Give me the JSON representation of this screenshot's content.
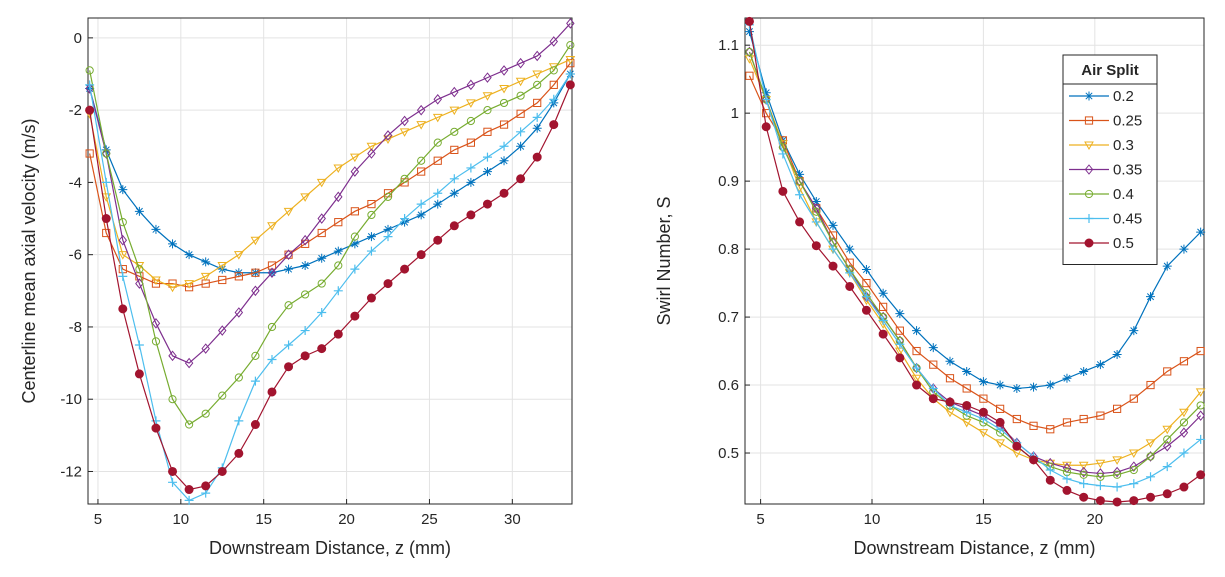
{
  "chart_data": [
    {
      "type": "line",
      "xlabel": "Downstream Distance, z (mm)",
      "ylabel": "Centerline mean axial velocity (m/s)",
      "x": [
        4.5,
        5.5,
        6.5,
        7.5,
        8.5,
        9.5,
        10.5,
        11.5,
        12.5,
        13.5,
        14.5,
        15.5,
        16.5,
        17.5,
        18.5,
        19.5,
        20.5,
        21.5,
        22.5,
        23.5,
        24.5,
        25.5,
        26.5,
        27.5,
        28.5,
        29.5,
        30.5,
        31.5,
        32.5,
        33.5
      ],
      "xlim": [
        4.4,
        33.6
      ],
      "xticks": [
        5,
        10,
        15,
        20,
        25,
        30
      ],
      "ylim": [
        -12.9,
        0.55
      ],
      "yticks": [
        -12,
        -10,
        -8,
        -6,
        -4,
        -2,
        0
      ],
      "grid": true,
      "series": [
        {
          "color": "#0072BD",
          "marker": "asterisk",
          "values": [
            -1.4,
            -3.1,
            -4.2,
            -4.8,
            -5.3,
            -5.7,
            -6.0,
            -6.2,
            -6.4,
            -6.5,
            -6.5,
            -6.5,
            -6.4,
            -6.3,
            -6.1,
            -5.9,
            -5.7,
            -5.5,
            -5.3,
            -5.1,
            -4.9,
            -4.6,
            -4.3,
            -4.0,
            -3.7,
            -3.4,
            -3.0,
            -2.5,
            -1.8,
            -1.0
          ]
        },
        {
          "color": "#D95319",
          "marker": "square",
          "values": [
            -3.2,
            -5.4,
            -6.4,
            -6.6,
            -6.8,
            -6.8,
            -6.9,
            -6.8,
            -6.7,
            -6.6,
            -6.5,
            -6.3,
            -6.0,
            -5.7,
            -5.4,
            -5.1,
            -4.8,
            -4.6,
            -4.3,
            -4.0,
            -3.7,
            -3.4,
            -3.1,
            -2.9,
            -2.6,
            -2.4,
            -2.1,
            -1.8,
            -1.3,
            -0.7
          ]
        },
        {
          "color": "#EDB120",
          "marker": "triangle-down",
          "values": [
            -2.1,
            -4.4,
            -6.0,
            -6.3,
            -6.7,
            -6.9,
            -6.8,
            -6.6,
            -6.3,
            -6.0,
            -5.6,
            -5.2,
            -4.8,
            -4.4,
            -4.0,
            -3.6,
            -3.3,
            -3.0,
            -2.8,
            -2.6,
            -2.4,
            -2.2,
            -2.0,
            -1.8,
            -1.6,
            -1.4,
            -1.2,
            -1.0,
            -0.8,
            -0.6
          ]
        },
        {
          "color": "#7E2F8E",
          "marker": "diamond",
          "values": [
            -1.4,
            -3.2,
            -5.6,
            -6.8,
            -7.9,
            -8.8,
            -9.0,
            -8.6,
            -8.1,
            -7.6,
            -7.0,
            -6.5,
            -6.0,
            -5.6,
            -5.0,
            -4.4,
            -3.7,
            -3.2,
            -2.7,
            -2.3,
            -2.0,
            -1.7,
            -1.5,
            -1.3,
            -1.1,
            -0.9,
            -0.7,
            -0.5,
            -0.1,
            0.4
          ]
        },
        {
          "color": "#77AC30",
          "marker": "circle",
          "values": [
            -0.9,
            -3.2,
            -5.1,
            -6.4,
            -8.4,
            -10.0,
            -10.7,
            -10.4,
            -9.9,
            -9.4,
            -8.8,
            -8.0,
            -7.4,
            -7.1,
            -6.8,
            -6.3,
            -5.5,
            -4.9,
            -4.4,
            -3.9,
            -3.4,
            -2.9,
            -2.6,
            -2.3,
            -2.0,
            -1.8,
            -1.6,
            -1.3,
            -0.9,
            -0.2
          ]
        },
        {
          "color": "#4DBEEE",
          "marker": "plus",
          "values": [
            -1.3,
            -4.0,
            -6.6,
            -8.5,
            -10.6,
            -12.3,
            -12.8,
            -12.6,
            -11.9,
            -10.6,
            -9.5,
            -8.9,
            -8.5,
            -8.1,
            -7.6,
            -7.0,
            -6.4,
            -5.9,
            -5.5,
            -5.0,
            -4.6,
            -4.3,
            -3.9,
            -3.6,
            -3.3,
            -3.0,
            -2.6,
            -2.2,
            -1.7,
            -1.0
          ]
        },
        {
          "color": "#A2142F",
          "marker": "filled-circle",
          "values": [
            -2.0,
            -5.0,
            -7.5,
            -9.3,
            -10.8,
            -12.0,
            -12.5,
            -12.4,
            -12.0,
            -11.5,
            -10.7,
            -9.8,
            -9.1,
            -8.8,
            -8.6,
            -8.2,
            -7.7,
            -7.2,
            -6.8,
            -6.4,
            -6.0,
            -5.6,
            -5.2,
            -4.9,
            -4.6,
            -4.3,
            -3.9,
            -3.3,
            -2.4,
            -1.3
          ]
        }
      ]
    },
    {
      "type": "line",
      "xlabel": "Downstream Distance, z (mm)",
      "ylabel": "Swirl Number, S",
      "x": [
        4.5,
        5.25,
        6,
        6.75,
        7.5,
        8.25,
        9,
        9.75,
        10.5,
        11.25,
        12,
        12.75,
        13.5,
        14.25,
        15,
        15.75,
        16.5,
        17.25,
        18,
        18.75,
        19.5,
        20.25,
        21,
        21.75,
        22.5,
        23.25,
        24,
        24.75
      ],
      "xlim": [
        4.3,
        24.9
      ],
      "xticks": [
        5,
        10,
        15,
        20
      ],
      "ylim": [
        0.425,
        1.14
      ],
      "yticks": [
        0.5,
        0.6,
        0.7,
        0.8,
        0.9,
        1,
        1.1
      ],
      "grid": true,
      "legend": {
        "title": "Air Split",
        "loc": "northeast"
      },
      "series": [
        {
          "name": "0.2",
          "color": "#0072BD",
          "marker": "asterisk",
          "values": [
            1.12,
            1.03,
            0.96,
            0.91,
            0.87,
            0.835,
            0.8,
            0.77,
            0.735,
            0.705,
            0.68,
            0.655,
            0.635,
            0.62,
            0.605,
            0.6,
            0.595,
            0.597,
            0.6,
            0.61,
            0.62,
            0.63,
            0.645,
            0.68,
            0.73,
            0.775,
            0.8,
            0.825
          ]
        },
        {
          "name": "0.25",
          "color": "#D95319",
          "marker": "square",
          "values": [
            1.055,
            1.0,
            0.96,
            0.9,
            0.86,
            0.82,
            0.78,
            0.75,
            0.715,
            0.68,
            0.65,
            0.63,
            0.61,
            0.595,
            0.58,
            0.565,
            0.55,
            0.54,
            0.535,
            0.545,
            0.55,
            0.555,
            0.565,
            0.58,
            0.6,
            0.62,
            0.635,
            0.65
          ]
        },
        {
          "name": "0.3",
          "color": "#EDB120",
          "marker": "triangle-down",
          "values": [
            1.08,
            1.02,
            0.955,
            0.89,
            0.84,
            0.8,
            0.765,
            0.725,
            0.69,
            0.65,
            0.61,
            0.58,
            0.56,
            0.545,
            0.53,
            0.515,
            0.5,
            0.49,
            0.485,
            0.482,
            0.482,
            0.485,
            0.49,
            0.5,
            0.515,
            0.535,
            0.56,
            0.59
          ]
        },
        {
          "name": "0.35",
          "color": "#7E2F8E",
          "marker": "diamond",
          "values": [
            1.09,
            1.02,
            0.95,
            0.9,
            0.86,
            0.81,
            0.77,
            0.73,
            0.7,
            0.665,
            0.625,
            0.595,
            0.575,
            0.565,
            0.555,
            0.54,
            0.515,
            0.495,
            0.485,
            0.478,
            0.472,
            0.47,
            0.472,
            0.48,
            0.495,
            0.51,
            0.53,
            0.555
          ]
        },
        {
          "name": "0.4",
          "color": "#77AC30",
          "marker": "circle",
          "values": [
            1.09,
            1.02,
            0.95,
            0.9,
            0.855,
            0.81,
            0.77,
            0.735,
            0.7,
            0.665,
            0.625,
            0.59,
            0.57,
            0.555,
            0.545,
            0.53,
            0.51,
            0.49,
            0.48,
            0.472,
            0.468,
            0.465,
            0.468,
            0.475,
            0.495,
            0.52,
            0.545,
            0.57
          ]
        },
        {
          "name": "0.45",
          "color": "#4DBEEE",
          "marker": "plus",
          "values": [
            1.13,
            1.02,
            0.94,
            0.88,
            0.84,
            0.8,
            0.765,
            0.73,
            0.695,
            0.66,
            0.625,
            0.595,
            0.57,
            0.56,
            0.55,
            0.535,
            0.515,
            0.495,
            0.475,
            0.462,
            0.455,
            0.452,
            0.45,
            0.455,
            0.465,
            0.48,
            0.5,
            0.52
          ]
        },
        {
          "name": "0.5",
          "color": "#A2142F",
          "marker": "filled-circle",
          "values": [
            1.135,
            0.98,
            0.885,
            0.84,
            0.805,
            0.775,
            0.745,
            0.71,
            0.675,
            0.64,
            0.6,
            0.58,
            0.575,
            0.57,
            0.56,
            0.545,
            0.51,
            0.49,
            0.46,
            0.445,
            0.435,
            0.43,
            0.428,
            0.43,
            0.435,
            0.44,
            0.45,
            0.468
          ]
        }
      ]
    }
  ]
}
